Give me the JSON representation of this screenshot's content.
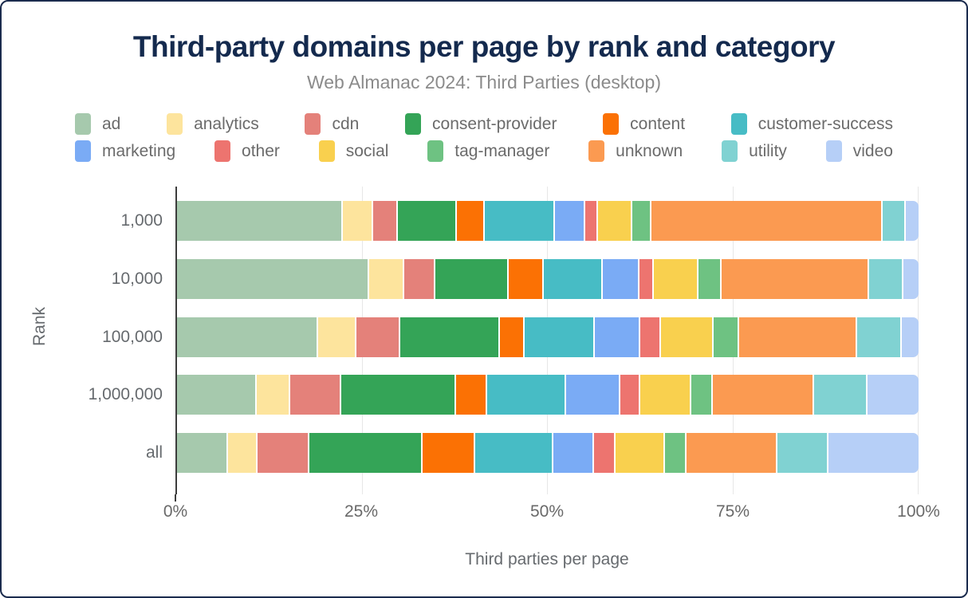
{
  "frame": {
    "border_color": "#1b2b4d"
  },
  "chart_data": {
    "type": "bar",
    "stacked": true,
    "orientation": "horizontal",
    "title": "Third-party domains per page by rank and category",
    "subtitle": "Web Almanac 2024: Third Parties (desktop)",
    "xlabel": "Third parties per page",
    "ylabel": "Rank",
    "xlim": [
      0,
      100
    ],
    "x_ticks": [
      "0%",
      "25%",
      "50%",
      "75%",
      "100%"
    ],
    "x_tick_values": [
      0,
      25,
      50,
      75,
      100
    ],
    "grid": true,
    "legend_position": "top",
    "legend_rows": [
      6,
      7
    ],
    "categories": [
      "1,000",
      "10,000",
      "100,000",
      "1,000,000",
      "all"
    ],
    "series": [
      {
        "name": "ad",
        "color": "#a6c9ad",
        "values": [
          22.4,
          25.9,
          19.0,
          10.8,
          6.9
        ]
      },
      {
        "name": "analytics",
        "color": "#fde49d",
        "values": [
          4.0,
          4.7,
          5.2,
          4.5,
          4.0
        ]
      },
      {
        "name": "cdn",
        "color": "#e4817a",
        "values": [
          3.4,
          4.2,
          5.9,
          6.8,
          7.0
        ]
      },
      {
        "name": "consent-provider",
        "color": "#34a457",
        "values": [
          7.9,
          9.9,
          13.5,
          15.5,
          15.2
        ]
      },
      {
        "name": "content",
        "color": "#fb7104",
        "values": [
          3.8,
          4.8,
          3.3,
          4.2,
          7.1
        ]
      },
      {
        "name": "customer-success",
        "color": "#47bcc5",
        "values": [
          9.5,
          7.9,
          9.5,
          10.7,
          10.6
        ]
      },
      {
        "name": "marketing",
        "color": "#7aabf5",
        "values": [
          4.1,
          5.0,
          6.1,
          7.3,
          5.4
        ]
      },
      {
        "name": "other",
        "color": "#ed746f",
        "values": [
          1.7,
          1.9,
          2.8,
          2.7,
          2.9
        ]
      },
      {
        "name": "social",
        "color": "#f9d04e",
        "values": [
          4.6,
          6.0,
          7.1,
          6.9,
          6.7
        ]
      },
      {
        "name": "tag-manager",
        "color": "#6ec282",
        "values": [
          2.6,
          3.1,
          3.4,
          2.9,
          2.9
        ]
      },
      {
        "name": "unknown",
        "color": "#fb9a51",
        "values": [
          31.2,
          19.9,
          15.9,
          13.6,
          12.3
        ]
      },
      {
        "name": "utility",
        "color": "#80d2d2",
        "values": [
          3.1,
          4.7,
          6.0,
          7.2,
          6.9
        ]
      },
      {
        "name": "video",
        "color": "#b6cff7",
        "values": [
          1.7,
          2.0,
          2.3,
          6.9,
          12.1
        ]
      }
    ]
  }
}
